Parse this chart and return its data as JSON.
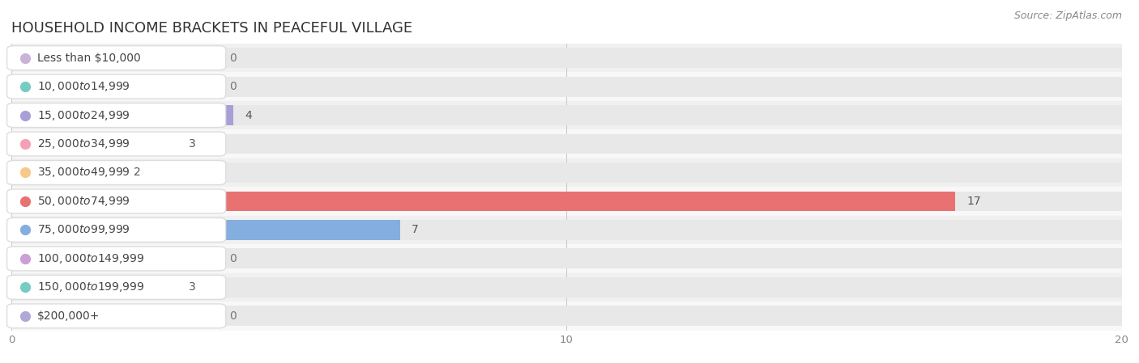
{
  "title": "HOUSEHOLD INCOME BRACKETS IN PEACEFUL VILLAGE",
  "source": "Source: ZipAtlas.com",
  "categories": [
    "Less than $10,000",
    "$10,000 to $14,999",
    "$15,000 to $24,999",
    "$25,000 to $34,999",
    "$35,000 to $49,999",
    "$50,000 to $74,999",
    "$75,000 to $99,999",
    "$100,000 to $149,999",
    "$150,000 to $199,999",
    "$200,000+"
  ],
  "values": [
    0,
    0,
    4,
    3,
    2,
    17,
    7,
    0,
    3,
    0
  ],
  "bar_colors": [
    "#c9b3d9",
    "#76ccc3",
    "#a89fd6",
    "#f4a0b5",
    "#f5c98a",
    "#e87272",
    "#85aee0",
    "#cc9fd6",
    "#76ccc3",
    "#b0a8d8"
  ],
  "row_bg_colors": [
    "#f0f0f0",
    "#f8f8f8"
  ],
  "xlim": [
    0,
    20
  ],
  "xticks": [
    0,
    10,
    20
  ],
  "background_color": "#ffffff",
  "bar_bg_color": "#e8e8e8",
  "title_fontsize": 13,
  "source_fontsize": 9,
  "label_fontsize": 10,
  "value_fontsize": 10,
  "bar_height": 0.7
}
